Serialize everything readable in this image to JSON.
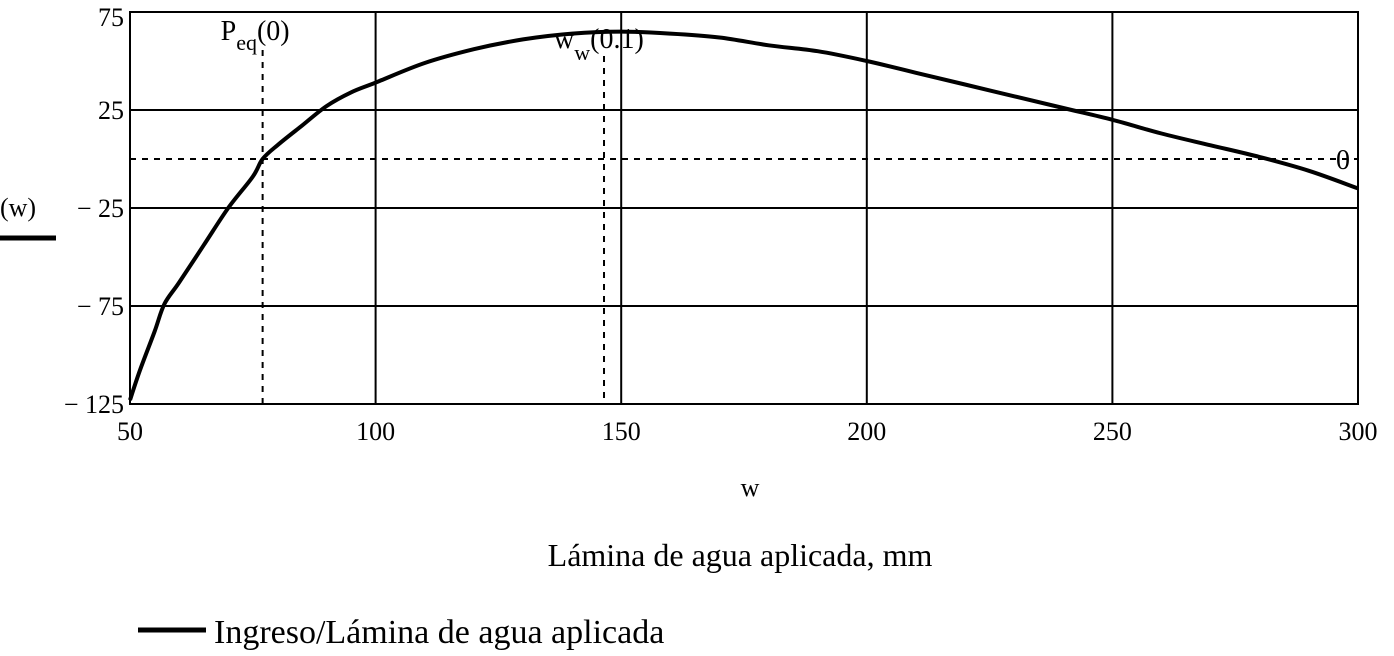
{
  "chart_data": {
    "type": "line",
    "xlabel": "w",
    "ylabel": "(w)",
    "subtitle": "Lámina de agua aplicada, mm",
    "xlim": [
      50,
      300
    ],
    "ylim": [
      -125,
      75
    ],
    "x_ticks": [
      50,
      100,
      150,
      200,
      250,
      300
    ],
    "x_tick_labels": [
      "50",
      "100",
      "150",
      "200",
      "250",
      "300"
    ],
    "y_ticks": [
      75,
      25,
      -25,
      -75,
      -125
    ],
    "y_tick_labels": [
      "75",
      "25",
      "− 25",
      "− 75",
      "− 125"
    ],
    "grid": true,
    "legend_position": "bottom-left",
    "series": [
      {
        "name": "Ingreso/Lámina de agua aplicada",
        "color": "#000000",
        "x": [
          50,
          52,
          55,
          57,
          60,
          65,
          70,
          75,
          77,
          80,
          85,
          90,
          95,
          100,
          110,
          120,
          130,
          140,
          150,
          160,
          170,
          180,
          190,
          200,
          210,
          220,
          230,
          240,
          250,
          260,
          270,
          280,
          290,
          300
        ],
        "y": [
          -123,
          -108,
          -88,
          -74,
          -63,
          -44,
          -25,
          -9,
          0,
          7,
          17,
          27,
          34,
          39,
          49,
          56,
          61,
          64,
          65,
          64,
          62,
          58,
          55,
          50,
          44,
          38,
          32,
          26,
          20,
          13,
          7,
          1,
          -6,
          -15
        ]
      }
    ],
    "annotations": {
      "p_eq": {
        "main": "P",
        "sub": "eq",
        "arg": "(0)",
        "x": 77
      },
      "w_w": {
        "main": "w",
        "sub": "w",
        "arg": "(0.1)",
        "x": 146.5
      },
      "zero_line": {
        "label": "0",
        "y": 0
      }
    }
  }
}
